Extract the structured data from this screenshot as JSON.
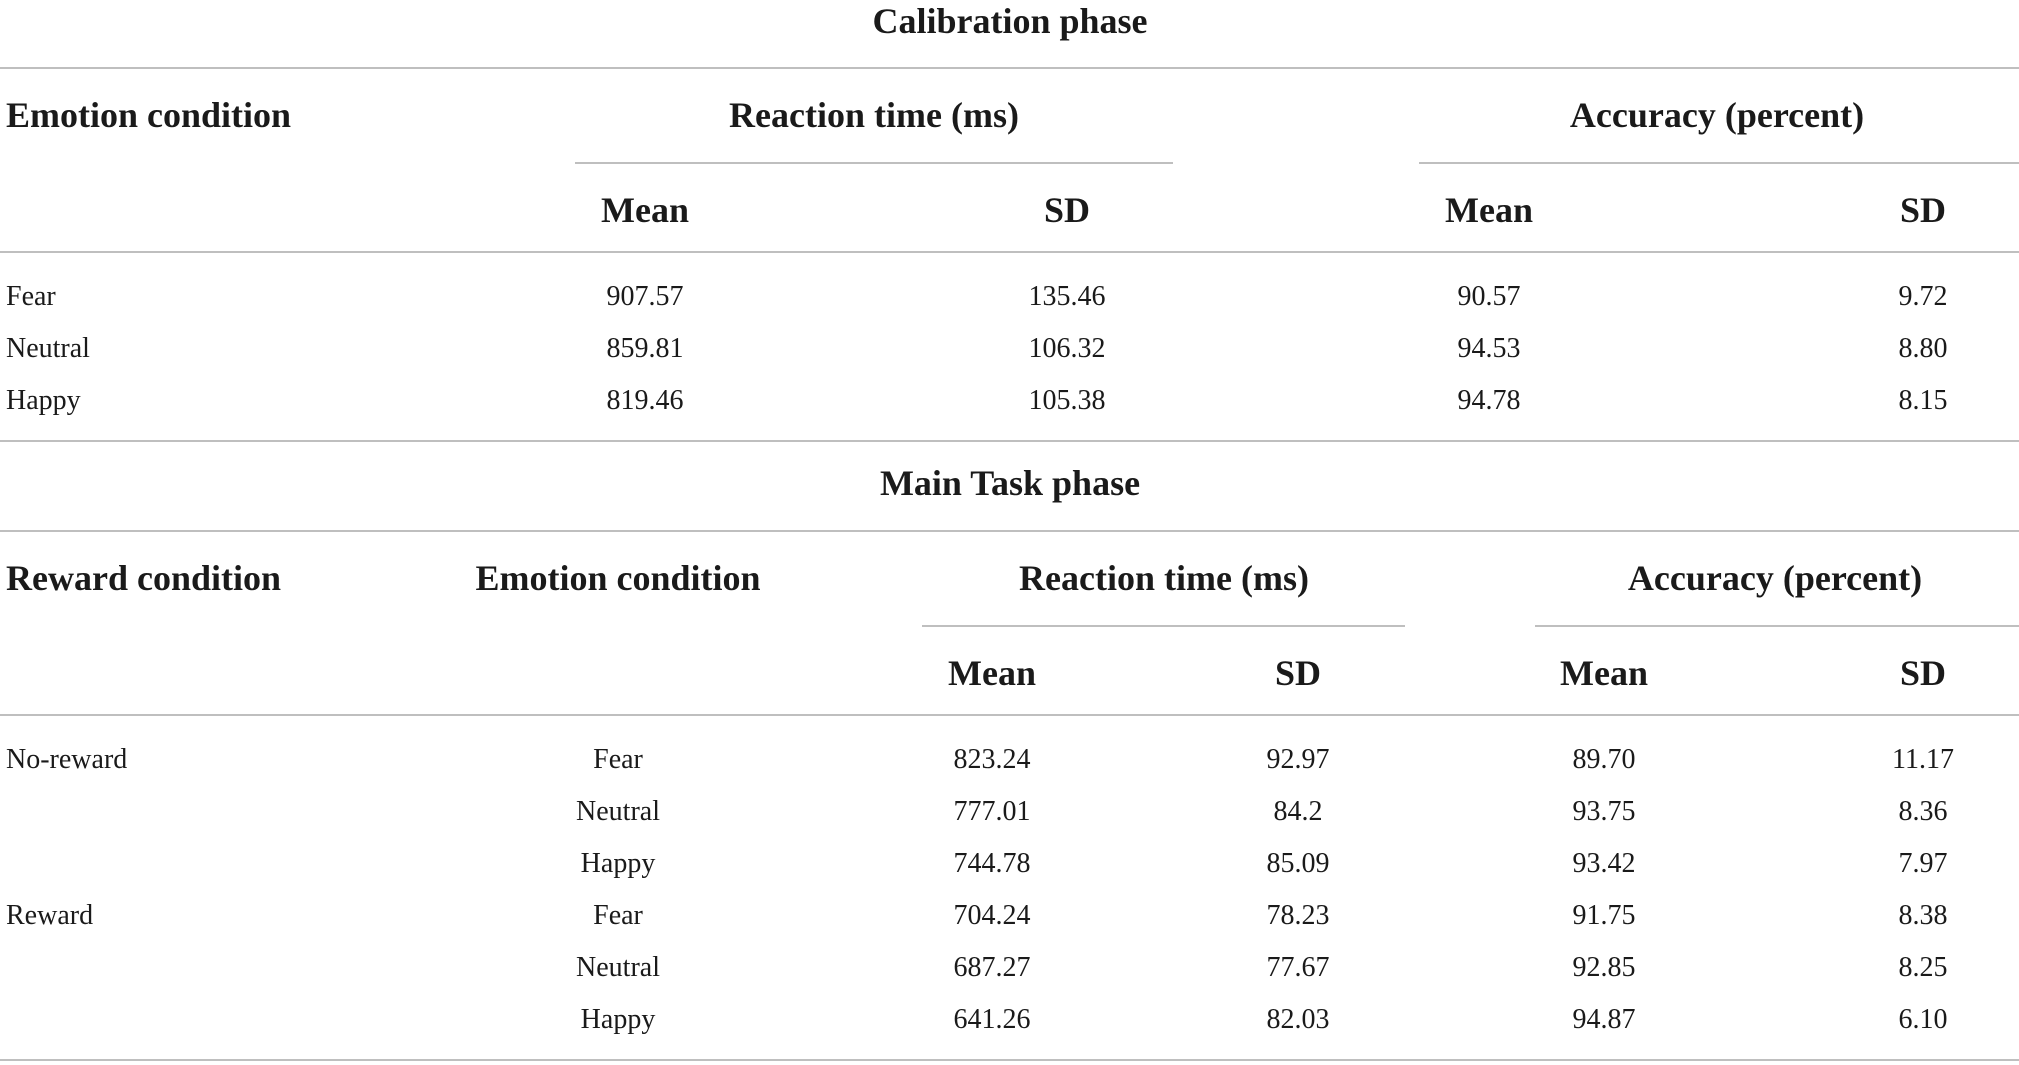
{
  "calibration": {
    "title": "Calibration phase",
    "col_emotion": "Emotion condition",
    "col_rt": "Reaction time (ms)",
    "col_acc": "Accuracy (percent)",
    "sub_mean": "Mean",
    "sub_sd": "SD",
    "rows": [
      {
        "emotion": "Fear",
        "rt_mean": "907.57",
        "rt_sd": "135.46",
        "acc_mean": "90.57",
        "acc_sd": "9.72"
      },
      {
        "emotion": "Neutral",
        "rt_mean": "859.81",
        "rt_sd": "106.32",
        "acc_mean": "94.53",
        "acc_sd": "8.80"
      },
      {
        "emotion": "Happy",
        "rt_mean": "819.46",
        "rt_sd": "105.38",
        "acc_mean": "94.78",
        "acc_sd": "8.15"
      }
    ]
  },
  "main": {
    "title": "Main Task phase",
    "col_reward": "Reward condition",
    "col_emotion": "Emotion condition",
    "col_rt": "Reaction time (ms)",
    "col_acc": "Accuracy (percent)",
    "sub_mean": "Mean",
    "sub_sd": "SD",
    "rows": [
      {
        "reward": "No-reward",
        "emotion": "Fear",
        "rt_mean": "823.24",
        "rt_sd": "92.97",
        "acc_mean": "89.70",
        "acc_sd": "11.17"
      },
      {
        "reward": "",
        "emotion": "Neutral",
        "rt_mean": "777.01",
        "rt_sd": "84.2",
        "acc_mean": "93.75",
        "acc_sd": "8.36"
      },
      {
        "reward": "",
        "emotion": "Happy",
        "rt_mean": "744.78",
        "rt_sd": "85.09",
        "acc_mean": "93.42",
        "acc_sd": "7.97"
      },
      {
        "reward": "Reward",
        "emotion": "Fear",
        "rt_mean": "704.24",
        "rt_sd": "78.23",
        "acc_mean": "91.75",
        "acc_sd": "8.38"
      },
      {
        "reward": "",
        "emotion": "Neutral",
        "rt_mean": "687.27",
        "rt_sd": "77.67",
        "acc_mean": "92.85",
        "acc_sd": "8.25"
      },
      {
        "reward": "",
        "emotion": "Happy",
        "rt_mean": "641.26",
        "rt_sd": "82.03",
        "acc_mean": "94.87",
        "acc_sd": "6.10"
      }
    ]
  }
}
